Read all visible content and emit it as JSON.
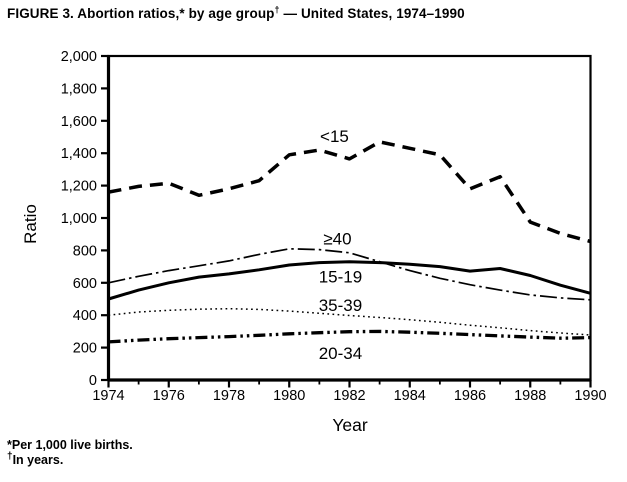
{
  "figure": {
    "title": {
      "prefix": "FIGURE 3. Abortion ratios,* by age group",
      "dagger": "†",
      "suffix": " — United States, 1974–1990"
    },
    "footnotes": [
      {
        "marker": "*",
        "text": "Per 1,000 live births."
      },
      {
        "marker": "†",
        "text": "In years."
      }
    ]
  },
  "chart_data": {
    "type": "line",
    "title": "FIGURE 3. Abortion ratios,* by age group† — United States, 1974–1990",
    "xlabel": "Year",
    "ylabel": "Ratio",
    "xlim": [
      1974,
      1990
    ],
    "ylim": [
      0,
      2000
    ],
    "grid": false,
    "legend": "inline-labels",
    "background": "#ffffff",
    "color": "#000000",
    "x": [
      1974,
      1975,
      1976,
      1977,
      1978,
      1979,
      1980,
      1981,
      1982,
      1983,
      1984,
      1985,
      1986,
      1987,
      1988,
      1989,
      1990
    ],
    "x_major_ticks": [
      1974,
      1976,
      1978,
      1980,
      1982,
      1984,
      1986,
      1988,
      1990
    ],
    "x_minor_ticks": [
      1975,
      1977,
      1979,
      1981,
      1983,
      1985,
      1987,
      1989
    ],
    "y_ticks": [
      {
        "value": 0,
        "label": "0"
      },
      {
        "value": 200,
        "label": "200"
      },
      {
        "value": 400,
        "label": "400"
      },
      {
        "value": 600,
        "label": "600"
      },
      {
        "value": 800,
        "label": "800"
      },
      {
        "value": 1000,
        "label": "1,000"
      },
      {
        "value": 1200,
        "label": "1,200"
      },
      {
        "value": 1400,
        "label": "1,400"
      },
      {
        "value": 1600,
        "label": "1,600"
      },
      {
        "value": 1800,
        "label": "1,800"
      },
      {
        "value": 2000,
        "label": "2,000"
      }
    ],
    "series": [
      {
        "name": "under-15",
        "label": "<15",
        "dash": "dashed",
        "values": [
          1160,
          1195,
          1215,
          1140,
          1180,
          1230,
          1390,
          1420,
          1365,
          1470,
          1430,
          1390,
          1180,
          1255,
          975,
          905,
          855
        ],
        "label_anchor": {
          "year": 1981.5,
          "value": 1505
        }
      },
      {
        "name": "40-and-over",
        "label": "≥40",
        "dash": "dashdot",
        "values": [
          600,
          640,
          675,
          705,
          735,
          775,
          810,
          805,
          785,
          730,
          675,
          628,
          588,
          555,
          525,
          507,
          495
        ],
        "label_anchor": {
          "year": 1981.6,
          "value": 875
        }
      },
      {
        "name": "15-19",
        "label": "15-19",
        "dash": "solid",
        "values": [
          500,
          555,
          600,
          635,
          655,
          680,
          710,
          725,
          730,
          725,
          715,
          700,
          672,
          688,
          645,
          585,
          535
        ],
        "label_anchor": {
          "year": 1981.7,
          "value": 640
        }
      },
      {
        "name": "35-39",
        "label": "35-39",
        "dash": "dotted",
        "values": [
          400,
          420,
          430,
          437,
          440,
          436,
          425,
          412,
          398,
          386,
          372,
          356,
          338,
          322,
          305,
          290,
          278
        ],
        "label_anchor": {
          "year": 1981.7,
          "value": 462
        }
      },
      {
        "name": "20-34",
        "label": "20-34",
        "dash": "dashdotdot",
        "values": [
          235,
          246,
          255,
          262,
          268,
          276,
          285,
          292,
          298,
          300,
          295,
          288,
          280,
          272,
          265,
          258,
          262
        ],
        "label_anchor": {
          "year": 1981.7,
          "value": 167
        }
      }
    ]
  }
}
